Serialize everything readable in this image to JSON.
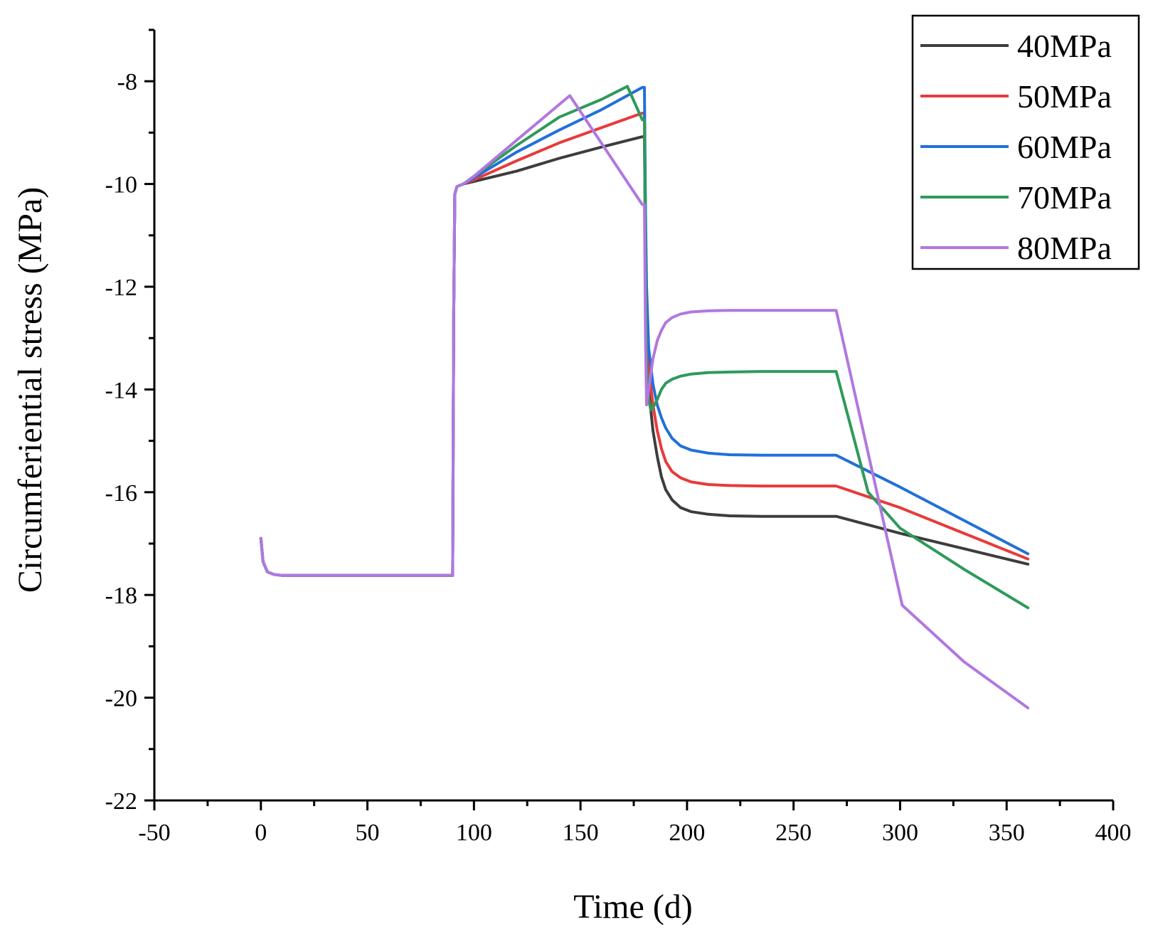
{
  "chart_data": {
    "type": "line",
    "title": "",
    "xlabel": "Time (d)",
    "ylabel": "Circumferiential stress (MPa)",
    "xlim": [
      -50,
      400
    ],
    "ylim": [
      -22,
      -7
    ],
    "xticks": [
      -50,
      0,
      50,
      100,
      150,
      200,
      250,
      300,
      350,
      400
    ],
    "yticks": [
      -22,
      -20,
      -18,
      -16,
      -14,
      -12,
      -10,
      -8
    ],
    "xtick_labels": [
      "-50",
      "0",
      "50",
      "100",
      "150",
      "200",
      "250",
      "300",
      "350",
      "400"
    ],
    "ytick_labels": [
      "-22",
      "-20",
      "-18",
      "-16",
      "-14",
      "-12",
      "-10",
      "-8"
    ],
    "legend_position": "top-right",
    "grid": false,
    "series": [
      {
        "name": "40MPa",
        "color": "#3d3d3d",
        "x": [
          0,
          1,
          3,
          6,
          10,
          30,
          60,
          90,
          90.5,
          91,
          92,
          95,
          100,
          120,
          140,
          160,
          179,
          180,
          180.5,
          181,
          182,
          184,
          186,
          188,
          190,
          193,
          197,
          202,
          210,
          220,
          235,
          250,
          270,
          300,
          330,
          360
        ],
        "y": [
          -16.9,
          -17.35,
          -17.55,
          -17.6,
          -17.62,
          -17.62,
          -17.62,
          -17.62,
          -12.5,
          -10.2,
          -10.05,
          -10.0,
          -9.95,
          -9.75,
          -9.5,
          -9.28,
          -9.08,
          -9.08,
          -11.5,
          -13.0,
          -14.0,
          -14.8,
          -15.3,
          -15.7,
          -15.95,
          -16.15,
          -16.3,
          -16.38,
          -16.43,
          -16.46,
          -16.47,
          -16.47,
          -16.47,
          -16.8,
          -17.1,
          -17.4
        ]
      },
      {
        "name": "50MPa",
        "color": "#e83a3a",
        "x": [
          0,
          1,
          3,
          6,
          10,
          30,
          60,
          90,
          90.5,
          91,
          92,
          95,
          100,
          120,
          140,
          160,
          179,
          180,
          180.5,
          181,
          182,
          184,
          186,
          188,
          190,
          193,
          197,
          202,
          210,
          220,
          235,
          250,
          270,
          300,
          330,
          360
        ],
        "y": [
          -16.9,
          -17.35,
          -17.55,
          -17.6,
          -17.62,
          -17.62,
          -17.62,
          -17.62,
          -12.5,
          -10.2,
          -10.05,
          -10.0,
          -9.92,
          -9.55,
          -9.2,
          -8.9,
          -8.62,
          -8.62,
          -11.0,
          -12.6,
          -13.6,
          -14.3,
          -14.8,
          -15.15,
          -15.4,
          -15.6,
          -15.72,
          -15.8,
          -15.85,
          -15.87,
          -15.88,
          -15.88,
          -15.88,
          -16.3,
          -16.8,
          -17.3
        ]
      },
      {
        "name": "60MPa",
        "color": "#2170d8",
        "x": [
          0,
          1,
          3,
          6,
          10,
          30,
          60,
          90,
          90.5,
          91,
          92,
          95,
          100,
          120,
          140,
          160,
          179,
          180,
          180.5,
          181,
          182,
          184,
          186,
          188,
          190,
          193,
          197,
          202,
          210,
          220,
          235,
          250,
          270,
          300,
          330,
          360
        ],
        "y": [
          -16.9,
          -17.35,
          -17.55,
          -17.6,
          -17.62,
          -17.62,
          -17.62,
          -17.62,
          -12.5,
          -10.2,
          -10.05,
          -10.0,
          -9.88,
          -9.38,
          -8.95,
          -8.55,
          -8.12,
          -8.12,
          -10.5,
          -12.0,
          -13.2,
          -13.9,
          -14.3,
          -14.55,
          -14.75,
          -14.95,
          -15.1,
          -15.18,
          -15.24,
          -15.27,
          -15.28,
          -15.28,
          -15.28,
          -15.9,
          -16.55,
          -17.2
        ]
      },
      {
        "name": "70MPa",
        "color": "#2e9a5a",
        "x": [
          0,
          1,
          3,
          6,
          10,
          30,
          60,
          90,
          90.5,
          91,
          92,
          95,
          100,
          120,
          140,
          160,
          172,
          179,
          180,
          180.5,
          181,
          182,
          183,
          184,
          186,
          188,
          190,
          193,
          197,
          202,
          210,
          220,
          235,
          250,
          270,
          285,
          300,
          330,
          360
        ],
        "y": [
          -16.9,
          -17.35,
          -17.55,
          -17.6,
          -17.62,
          -17.62,
          -17.62,
          -17.62,
          -12.5,
          -10.2,
          -10.05,
          -10.0,
          -9.85,
          -9.25,
          -8.7,
          -8.35,
          -8.1,
          -8.75,
          -8.75,
          -11.5,
          -13.5,
          -14.2,
          -14.4,
          -14.35,
          -14.2,
          -14.0,
          -13.88,
          -13.8,
          -13.74,
          -13.7,
          -13.67,
          -13.66,
          -13.65,
          -13.65,
          -13.65,
          -16.0,
          -16.7,
          -17.5,
          -18.25
        ]
      },
      {
        "name": "80MPa",
        "color": "#b177e0",
        "x": [
          0,
          1,
          3,
          6,
          10,
          30,
          60,
          90,
          90.5,
          91,
          92,
          95,
          100,
          120,
          145,
          179,
          180,
          180.5,
          181,
          182,
          184,
          186,
          188,
          190,
          193,
          197,
          202,
          210,
          220,
          235,
          250,
          270,
          301,
          330,
          360
        ],
        "y": [
          -16.9,
          -17.35,
          -17.55,
          -17.6,
          -17.62,
          -17.62,
          -17.62,
          -17.62,
          -12.5,
          -10.2,
          -10.05,
          -10.0,
          -9.85,
          -9.15,
          -8.28,
          -10.4,
          -10.4,
          -13.0,
          -14.3,
          -14.0,
          -13.4,
          -13.05,
          -12.85,
          -12.7,
          -12.6,
          -12.53,
          -12.49,
          -12.47,
          -12.46,
          -12.46,
          -12.46,
          -12.46,
          -18.2,
          -19.3,
          -20.2
        ]
      }
    ]
  }
}
